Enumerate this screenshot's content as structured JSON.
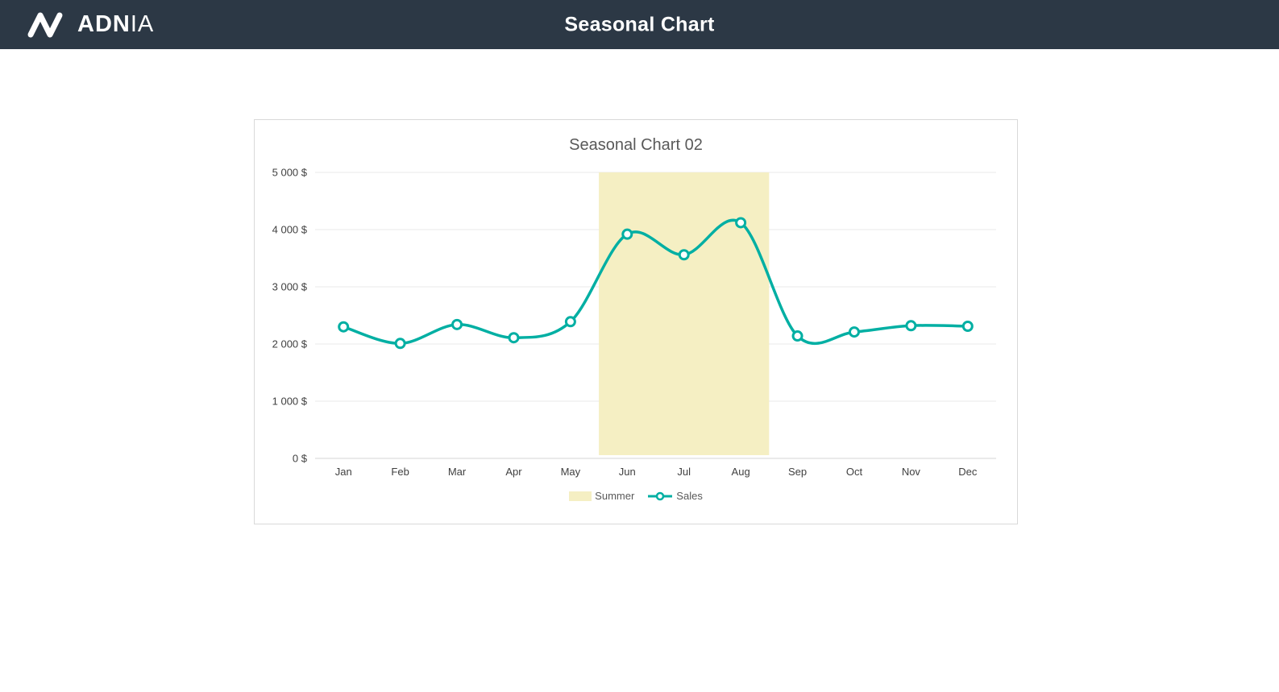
{
  "header": {
    "title": "Seasonal Chart",
    "brand_bold": "ADN",
    "brand_light": "IA"
  },
  "chart_data": {
    "type": "line",
    "title": "Seasonal Chart 02",
    "categories": [
      "Jan",
      "Feb",
      "Mar",
      "Apr",
      "May",
      "Jun",
      "Jul",
      "Aug",
      "Sep",
      "Oct",
      "Nov",
      "Dec"
    ],
    "series": [
      {
        "name": "Summer",
        "type": "band",
        "band_from": "Jun",
        "band_to": "Aug",
        "color": "#F5EFC3"
      },
      {
        "name": "Sales",
        "type": "line",
        "color": "#00AFA3",
        "values": [
          2300,
          2010,
          2340,
          2110,
          2390,
          3920,
          3560,
          4120,
          2140,
          2210,
          2320,
          2310
        ]
      }
    ],
    "ylim": [
      0,
      5000
    ],
    "yticks": {
      "values": [
        0,
        1000,
        2000,
        3000,
        4000,
        5000
      ],
      "labels": [
        "0 $",
        "1 000 $",
        "2 000 $",
        "3 000 $",
        "4 000 $",
        "5 000 $"
      ]
    },
    "grid": true,
    "legend_position": "bottom"
  },
  "colors": {
    "header_bg": "#2C3845",
    "accent_teal": "#00AFA3",
    "summer_band": "#F5EFC3",
    "grid_line": "#E8E8E8",
    "axis_line": "#D4D4D4",
    "text_gray": "#595959",
    "tick_text": "#404040"
  }
}
